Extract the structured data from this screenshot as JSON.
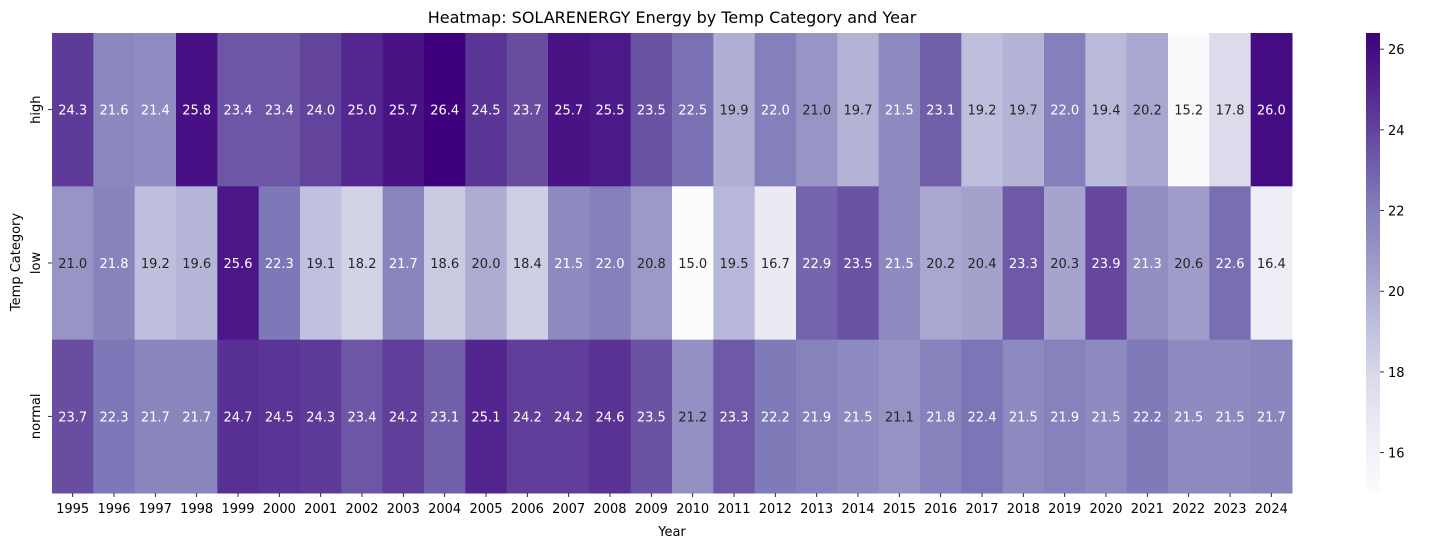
{
  "chart_data": {
    "type": "heatmap",
    "title": "Heatmap: SOLARENERGY Energy by Temp Category and Year",
    "xlabel": "Year",
    "ylabel": "Temp Category",
    "x": [
      "1995",
      "1996",
      "1997",
      "1998",
      "1999",
      "2000",
      "2001",
      "2002",
      "2003",
      "2004",
      "2005",
      "2006",
      "2007",
      "2008",
      "2009",
      "2010",
      "2011",
      "2012",
      "2013",
      "2014",
      "2015",
      "2016",
      "2017",
      "2018",
      "2019",
      "2020",
      "2021",
      "2022",
      "2023",
      "2024"
    ],
    "y": [
      "high",
      "low",
      "normal"
    ],
    "values": [
      [
        24.3,
        21.6,
        21.4,
        25.8,
        23.4,
        23.4,
        24.0,
        25.0,
        25.7,
        26.4,
        24.5,
        23.7,
        25.7,
        25.5,
        23.5,
        22.5,
        19.9,
        22.0,
        21.0,
        19.7,
        21.5,
        23.1,
        19.2,
        19.7,
        22.0,
        19.4,
        20.2,
        15.2,
        17.8,
        26.0
      ],
      [
        21.0,
        21.8,
        19.2,
        19.6,
        25.6,
        22.3,
        19.1,
        18.2,
        21.7,
        18.6,
        20.0,
        18.4,
        21.5,
        22.0,
        20.8,
        15.0,
        19.5,
        16.7,
        22.9,
        23.5,
        21.5,
        20.2,
        20.4,
        23.3,
        20.3,
        23.9,
        21.3,
        20.6,
        22.6,
        16.4
      ],
      [
        23.7,
        22.3,
        21.7,
        21.7,
        24.7,
        24.5,
        24.3,
        23.4,
        24.2,
        23.1,
        25.1,
        24.2,
        24.2,
        24.6,
        23.5,
        21.2,
        23.3,
        22.2,
        21.9,
        21.5,
        21.1,
        21.8,
        22.4,
        21.5,
        21.9,
        21.5,
        22.2,
        21.5,
        21.5,
        21.7
      ]
    ],
    "colormap": "Purples",
    "vmin": 15.0,
    "vmax": 26.4,
    "colorbar_ticks": [
      16,
      18,
      20,
      22,
      24,
      26
    ],
    "value_format": "1 decimal"
  }
}
